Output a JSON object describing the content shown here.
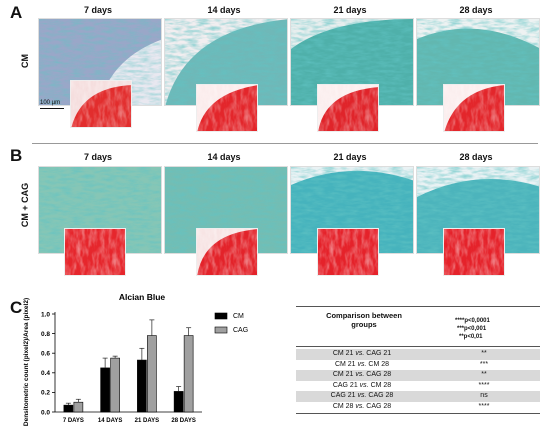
{
  "panels": {
    "a": "A",
    "b": "B",
    "c": "C"
  },
  "days": [
    "7 days",
    "14 days",
    "21 days",
    "28 days"
  ],
  "row_labels": {
    "cm": "CM",
    "cm_cag": "CM + CAG"
  },
  "scale_bar": "100 µm",
  "table": {
    "header": "Comparison between groups",
    "pvalues": [
      "****p<0,0001",
      "***p<0,001",
      "**p<0,01"
    ],
    "rows": [
      {
        "comparison": "CM 21 vs. CAG 21",
        "sig": "**"
      },
      {
        "comparison": "CM 21 vs. CM 28",
        "sig": "***"
      },
      {
        "comparison": "CM 21 vs. CAG 28",
        "sig": "**"
      },
      {
        "comparison": "CAG 21 vs. CM 28",
        "sig": "****"
      },
      {
        "comparison": "CAG 21 vs. CAG 28",
        "sig": "ns"
      },
      {
        "comparison": "CM 28 vs. CAG 28",
        "sig": "****"
      }
    ]
  },
  "chart_data": {
    "type": "bar",
    "title": "Alcian Blue",
    "ylabel": "Densitometric count (pixel2)/Area (pixel2)",
    "xlabel": "",
    "categories": [
      "7 DAYS",
      "14 DAYS",
      "21 DAYS",
      "28 DAYS"
    ],
    "ylim": [
      0,
      1.0
    ],
    "yticks": [
      "0.0",
      "0.2",
      "0.4",
      "0.6",
      "0.8",
      "1.0"
    ],
    "legend_position": "right",
    "series": [
      {
        "name": "CM",
        "color": "#000000",
        "values": [
          0.07,
          0.45,
          0.53,
          0.21
        ],
        "errors": [
          0.02,
          0.1,
          0.12,
          0.05
        ]
      },
      {
        "name": "CAG",
        "color": "#a0a0a0",
        "values": [
          0.1,
          0.55,
          0.78,
          0.78
        ],
        "errors": [
          0.03,
          0.02,
          0.16,
          0.08
        ]
      }
    ]
  }
}
